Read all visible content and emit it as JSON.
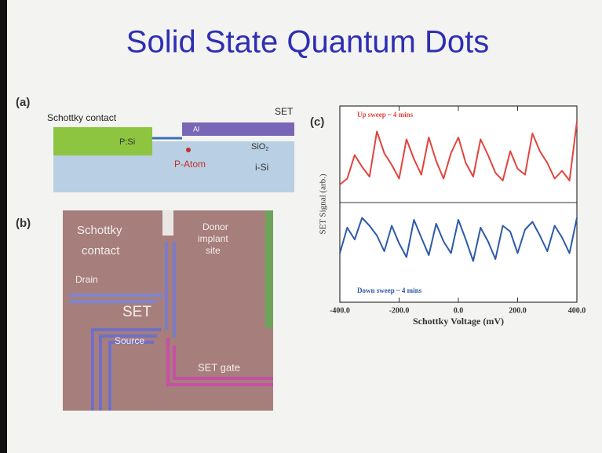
{
  "slide": {
    "title": "Solid State Quantum Dots"
  },
  "panel_a": {
    "label": "(a)",
    "schottky_contact": "Schottky contact",
    "set": "SET",
    "p_si": "P:Si",
    "al": "Al",
    "sio2": "SiO",
    "sio2_sub": "2",
    "p_atom": "P-Atom",
    "i_si": "i-Si"
  },
  "panel_b": {
    "label": "(b)",
    "schottky": "Schottky",
    "contact": "contact",
    "donor": "Donor",
    "implant": "implant",
    "site": "site",
    "drain": "Drain",
    "set": "SET",
    "source": "Source",
    "set_gate": "SET gate"
  },
  "panel_c": {
    "label": "(c)"
  },
  "chart_data": {
    "type": "line",
    "xlabel": "Schottky Voltage (mV)",
    "ylabel": "SET Signal (arb.)",
    "x": [
      -400,
      -375,
      -350,
      -325,
      -300,
      -275,
      -250,
      -225,
      -200,
      -175,
      -150,
      -125,
      -100,
      -75,
      -50,
      -25,
      0,
      25,
      50,
      75,
      100,
      125,
      150,
      175,
      200,
      225,
      250,
      275,
      300,
      325,
      350,
      375,
      400
    ],
    "series": [
      {
        "name": "Up sweep ~ 4 mins",
        "color": "#e0443c",
        "values": [
          6.0,
          6.3,
          7.5,
          6.9,
          6.4,
          8.7,
          7.6,
          7.0,
          6.3,
          8.3,
          7.3,
          6.5,
          8.4,
          7.2,
          6.3,
          7.6,
          8.4,
          7.1,
          6.4,
          8.3,
          7.5,
          6.6,
          6.2,
          7.7,
          6.8,
          6.5,
          8.6,
          7.7,
          7.1,
          6.3,
          6.7,
          6.2,
          9.2
        ]
      },
      {
        "name": "Down sweep ~ 4 mins",
        "color": "#2e5aa8",
        "values": [
          2.5,
          3.8,
          3.2,
          4.3,
          3.9,
          3.4,
          2.6,
          3.9,
          3.0,
          2.3,
          4.2,
          3.3,
          2.4,
          4.0,
          3.1,
          2.5,
          4.2,
          3.2,
          2.1,
          3.8,
          3.1,
          2.2,
          3.9,
          3.6,
          2.5,
          3.7,
          4.1,
          3.4,
          2.6,
          3.9,
          3.3,
          2.5,
          4.3
        ]
      }
    ],
    "xlim": [
      -400,
      400
    ],
    "xticks": [
      {
        "value": -400,
        "label": "-400.0"
      },
      {
        "value": -200,
        "label": "-200.0"
      },
      {
        "value": 0,
        "label": "0.0"
      },
      {
        "value": 200,
        "label": "200.0"
      },
      {
        "value": 400,
        "label": "400.0"
      }
    ],
    "ylim": [
      0,
      10
    ]
  }
}
